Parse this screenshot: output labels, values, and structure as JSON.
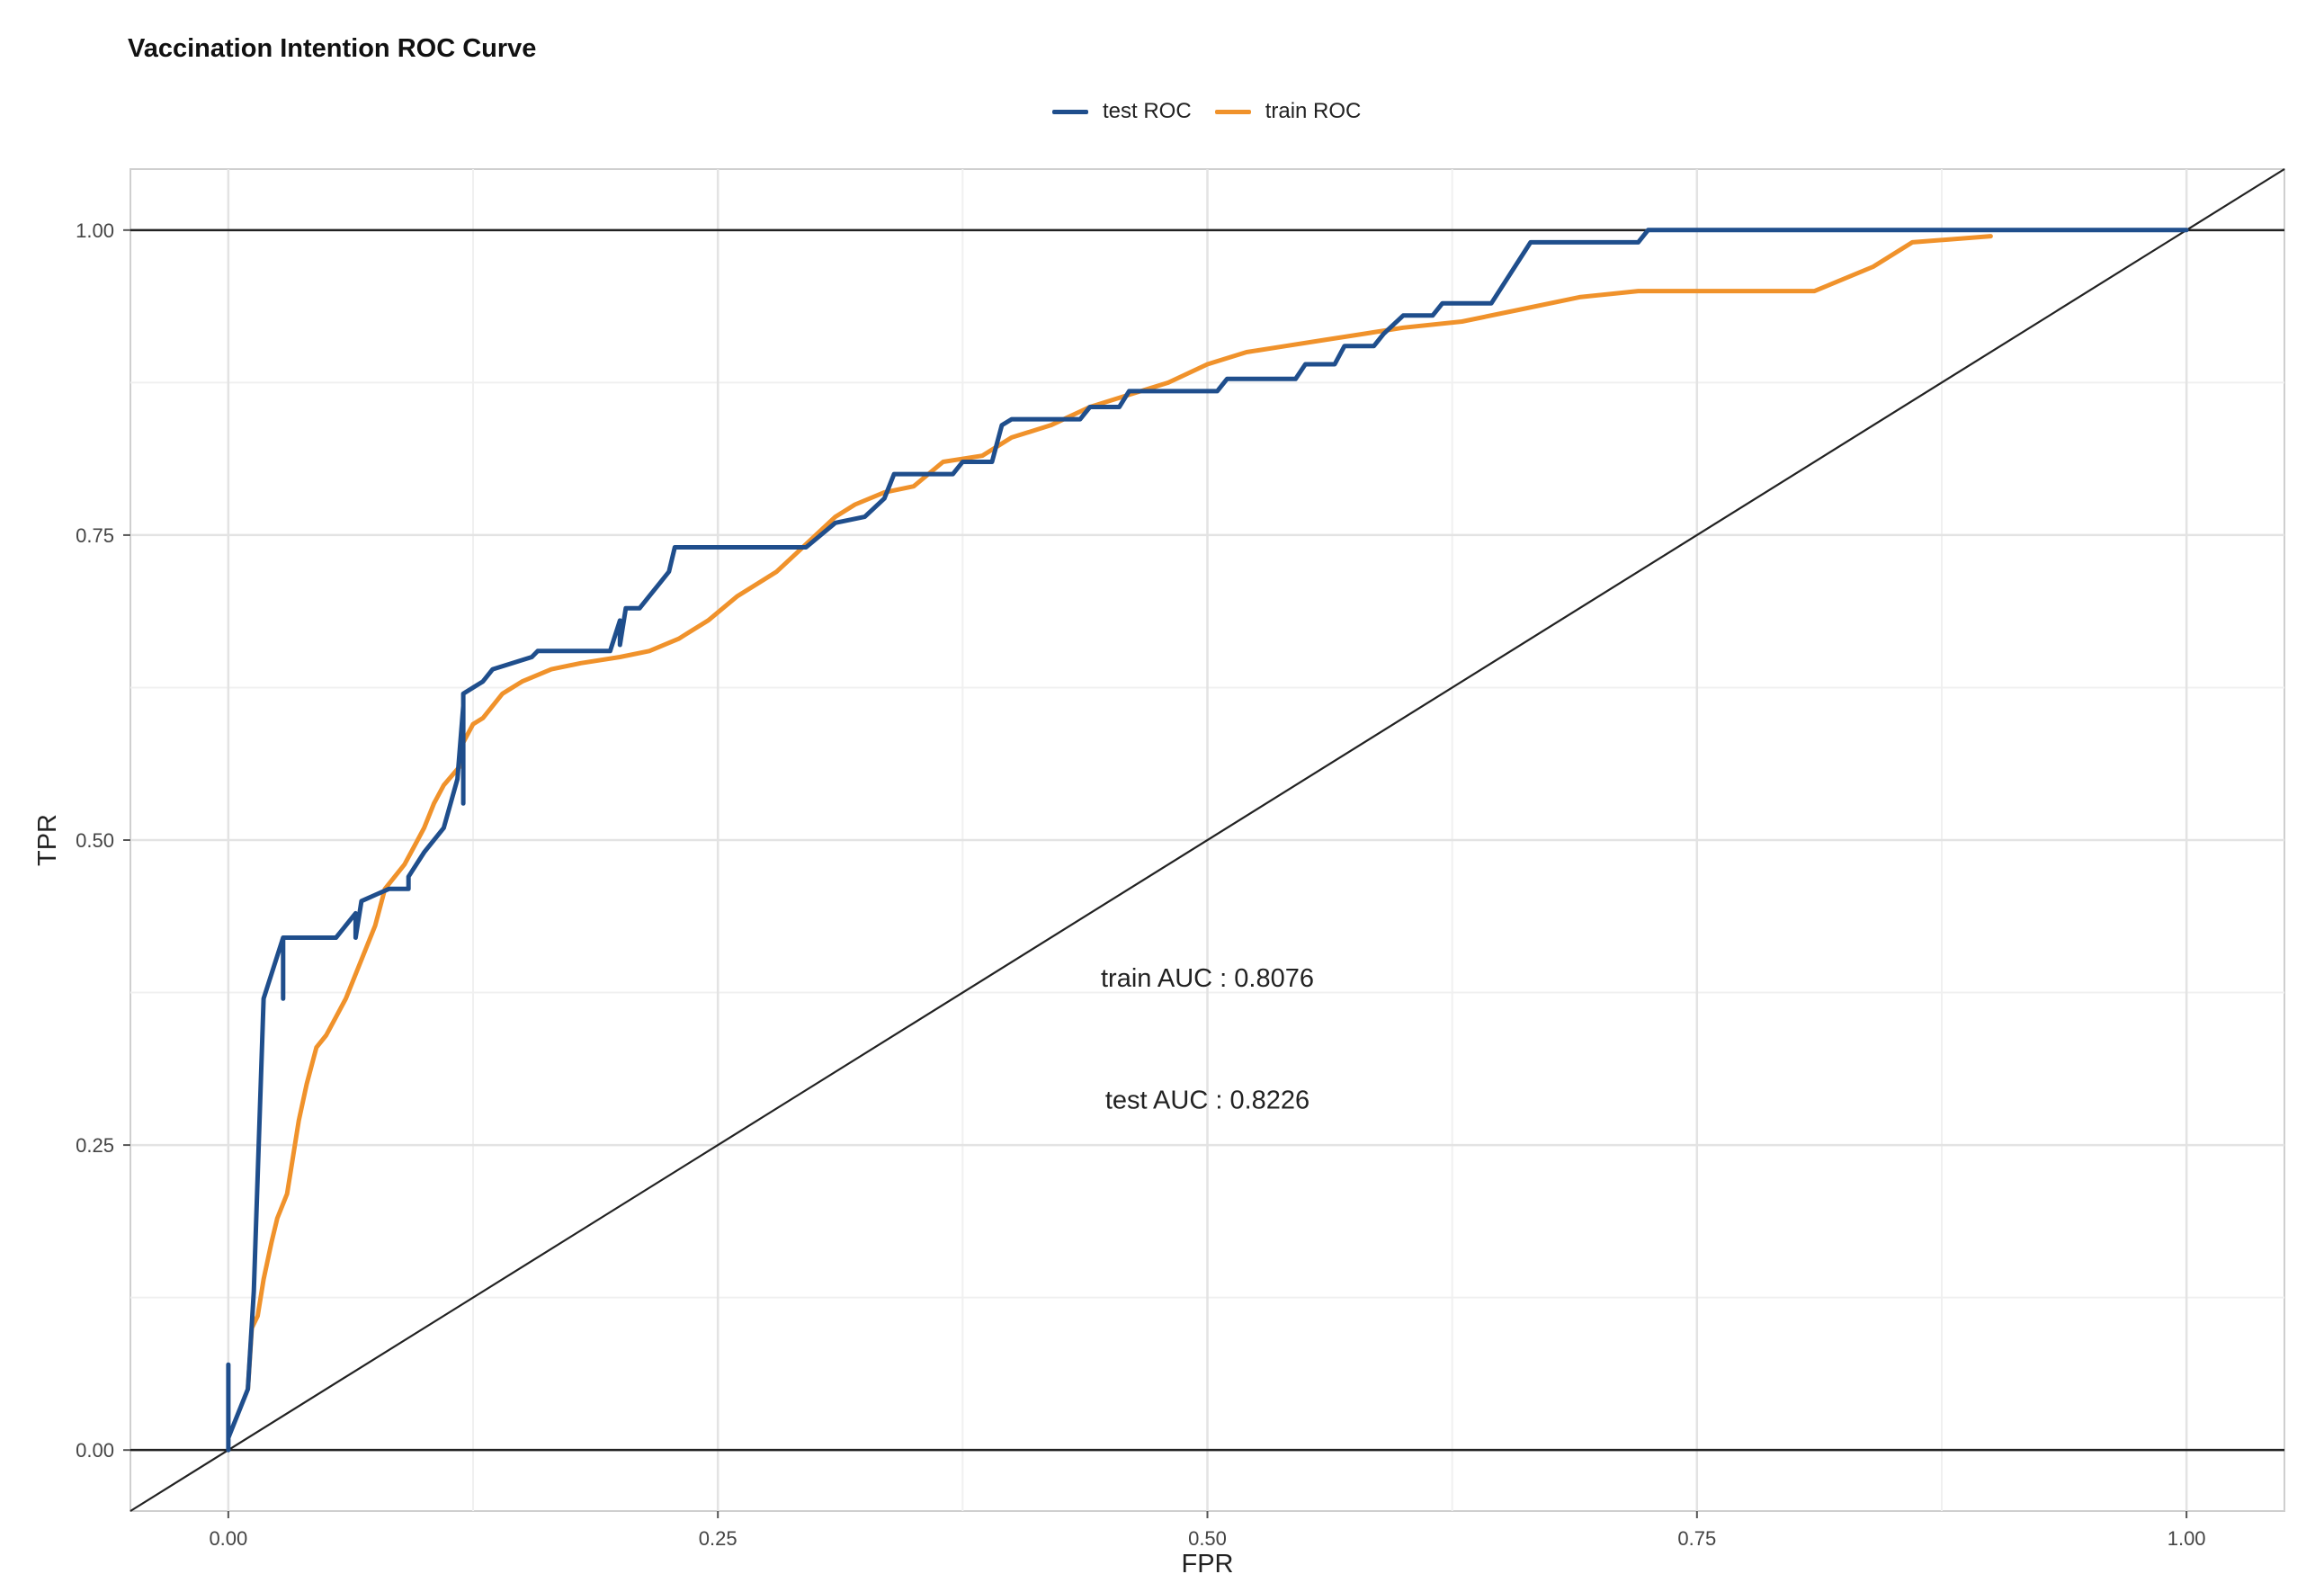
{
  "chart_data": {
    "type": "line",
    "title": "Vaccination Intention ROC Curve",
    "xlabel": "FPR",
    "ylabel": "TPR",
    "xlim": [
      -0.05,
      1.05
    ],
    "ylim": [
      -0.05,
      1.05
    ],
    "x_ticks": [
      "0.00",
      "0.25",
      "0.50",
      "0.75",
      "1.00"
    ],
    "y_ticks": [
      "0.00",
      "0.25",
      "0.50",
      "0.75",
      "1.00"
    ],
    "grid": true,
    "legend_position": "top",
    "reference_lines": {
      "horizontal": [
        0,
        1
      ],
      "diagonal": [
        [
          -0.05,
          -0.05
        ],
        [
          1.05,
          1.05
        ]
      ]
    },
    "series": [
      {
        "name": "test ROC",
        "color": "#1f4e8c",
        "points": [
          [
            0.0,
            0.0
          ],
          [
            0.0,
            0.07
          ],
          [
            0.0,
            0.01
          ],
          [
            0.01,
            0.05
          ],
          [
            0.013,
            0.13
          ],
          [
            0.018,
            0.37
          ],
          [
            0.028,
            0.42
          ],
          [
            0.028,
            0.37
          ],
          [
            0.028,
            0.42
          ],
          [
            0.055,
            0.42
          ],
          [
            0.065,
            0.44
          ],
          [
            0.065,
            0.42
          ],
          [
            0.068,
            0.45
          ],
          [
            0.075,
            0.455
          ],
          [
            0.082,
            0.46
          ],
          [
            0.092,
            0.46
          ],
          [
            0.092,
            0.47
          ],
          [
            0.1,
            0.49
          ],
          [
            0.11,
            0.51
          ],
          [
            0.117,
            0.55
          ],
          [
            0.12,
            0.61
          ],
          [
            0.12,
            0.53
          ],
          [
            0.12,
            0.62
          ],
          [
            0.13,
            0.63
          ],
          [
            0.135,
            0.64
          ],
          [
            0.155,
            0.65
          ],
          [
            0.158,
            0.655
          ],
          [
            0.195,
            0.655
          ],
          [
            0.2,
            0.68
          ],
          [
            0.2,
            0.66
          ],
          [
            0.203,
            0.69
          ],
          [
            0.21,
            0.69
          ],
          [
            0.215,
            0.7
          ],
          [
            0.22,
            0.71
          ],
          [
            0.225,
            0.72
          ],
          [
            0.228,
            0.74
          ],
          [
            0.295,
            0.74
          ],
          [
            0.31,
            0.76
          ],
          [
            0.325,
            0.765
          ],
          [
            0.335,
            0.78
          ],
          [
            0.34,
            0.8
          ],
          [
            0.37,
            0.8
          ],
          [
            0.375,
            0.81
          ],
          [
            0.39,
            0.81
          ],
          [
            0.395,
            0.84
          ],
          [
            0.4,
            0.845
          ],
          [
            0.435,
            0.845
          ],
          [
            0.44,
            0.855
          ],
          [
            0.455,
            0.855
          ],
          [
            0.46,
            0.868
          ],
          [
            0.505,
            0.868
          ],
          [
            0.51,
            0.878
          ],
          [
            0.545,
            0.878
          ],
          [
            0.55,
            0.89
          ],
          [
            0.565,
            0.89
          ],
          [
            0.57,
            0.905
          ],
          [
            0.585,
            0.905
          ],
          [
            0.59,
            0.915
          ],
          [
            0.6,
            0.93
          ],
          [
            0.615,
            0.93
          ],
          [
            0.62,
            0.94
          ],
          [
            0.645,
            0.94
          ],
          [
            0.665,
            0.99
          ],
          [
            0.72,
            0.99
          ],
          [
            0.725,
            1.0
          ],
          [
            1.0,
            1.0
          ]
        ]
      },
      {
        "name": "train ROC",
        "color": "#f0922b",
        "points": [
          [
            0.01,
            0.05
          ],
          [
            0.012,
            0.1
          ],
          [
            0.015,
            0.11
          ],
          [
            0.018,
            0.14
          ],
          [
            0.022,
            0.17
          ],
          [
            0.025,
            0.19
          ],
          [
            0.03,
            0.21
          ],
          [
            0.033,
            0.24
          ],
          [
            0.036,
            0.27
          ],
          [
            0.04,
            0.3
          ],
          [
            0.045,
            0.33
          ],
          [
            0.05,
            0.34
          ],
          [
            0.055,
            0.355
          ],
          [
            0.06,
            0.37
          ],
          [
            0.065,
            0.39
          ],
          [
            0.07,
            0.41
          ],
          [
            0.075,
            0.43
          ],
          [
            0.08,
            0.46
          ],
          [
            0.085,
            0.47
          ],
          [
            0.09,
            0.48
          ],
          [
            0.095,
            0.495
          ],
          [
            0.1,
            0.51
          ],
          [
            0.105,
            0.53
          ],
          [
            0.11,
            0.545
          ],
          [
            0.118,
            0.56
          ],
          [
            0.12,
            0.58
          ],
          [
            0.125,
            0.595
          ],
          [
            0.13,
            0.6
          ],
          [
            0.135,
            0.61
          ],
          [
            0.14,
            0.62
          ],
          [
            0.15,
            0.63
          ],
          [
            0.165,
            0.64
          ],
          [
            0.18,
            0.645
          ],
          [
            0.2,
            0.65
          ],
          [
            0.215,
            0.655
          ],
          [
            0.23,
            0.665
          ],
          [
            0.245,
            0.68
          ],
          [
            0.26,
            0.7
          ],
          [
            0.27,
            0.71
          ],
          [
            0.28,
            0.72
          ],
          [
            0.29,
            0.735
          ],
          [
            0.3,
            0.75
          ],
          [
            0.31,
            0.765
          ],
          [
            0.32,
            0.775
          ],
          [
            0.335,
            0.785
          ],
          [
            0.35,
            0.79
          ],
          [
            0.365,
            0.81
          ],
          [
            0.385,
            0.815
          ],
          [
            0.4,
            0.83
          ],
          [
            0.42,
            0.84
          ],
          [
            0.44,
            0.855
          ],
          [
            0.46,
            0.865
          ],
          [
            0.48,
            0.875
          ],
          [
            0.5,
            0.89
          ],
          [
            0.52,
            0.9
          ],
          [
            0.54,
            0.905
          ],
          [
            0.56,
            0.91
          ],
          [
            0.58,
            0.915
          ],
          [
            0.6,
            0.92
          ],
          [
            0.63,
            0.925
          ],
          [
            0.66,
            0.935
          ],
          [
            0.69,
            0.945
          ],
          [
            0.72,
            0.95
          ],
          [
            0.81,
            0.95
          ],
          [
            0.84,
            0.97
          ],
          [
            0.86,
            0.99
          ],
          [
            0.9,
            0.995
          ]
        ]
      }
    ],
    "annotations": [
      {
        "label": "train AUC :",
        "value": "0.8076",
        "x": 0.5,
        "y": 0.38
      },
      {
        "label": "test AUC :",
        "value": "0.8226",
        "x": 0.5,
        "y": 0.28
      }
    ]
  }
}
